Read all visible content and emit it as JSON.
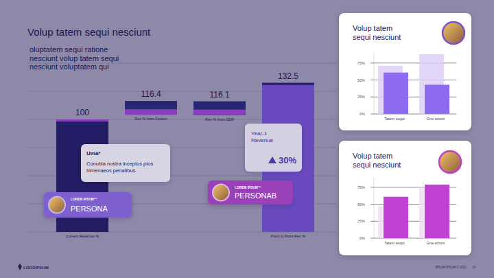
{
  "slide": {
    "title": "Volup tatem sequi nesciunt",
    "subtitle": [
      "oluptatem sequi ratione",
      "nesciunt volup tatem sequi",
      "nesciunt voluptatem qui"
    ],
    "callout": {
      "name": "Uma*",
      "text": "Conubia nostra inceptos ptos himenaeos penatibus."
    },
    "personas": [
      {
        "tag": "LOREM IPSUM™",
        "name": "PERSONA"
      },
      {
        "tag": "LOREM IPSUM™",
        "name": "PERSONAB"
      }
    ],
    "kpi": {
      "label": "Year-1 Revenue",
      "value": "30%"
    },
    "logo": "LOGOIPSUM",
    "footer": "IPSUM IPSUM © 2021",
    "page": 19
  },
  "chart_data": [
    {
      "type": "waterfall",
      "categories": [
        "Current Revenue %",
        "Rev % from Fosterr",
        "Rev % from SDR",
        "Point to Point Rev %"
      ],
      "values": [
        100,
        116.4,
        116.1,
        132.5
      ],
      "colors": [
        "#221d64",
        "#262673",
        "#262673",
        "#6a4bbf"
      ],
      "data_labels": true,
      "ylim": [
        0,
        150
      ],
      "yticks": [
        0,
        25,
        50,
        75,
        100,
        125,
        150
      ],
      "grid": true,
      "tick_labels": false
    },
    {
      "type": "bar",
      "title": "Volup tatem sequi nesciunt",
      "categories": [
        "Tatem sequi",
        "Gne sciunt"
      ],
      "series": [
        {
          "color": "#ddd0f7",
          "values": [
            71,
            88
          ]
        },
        {
          "color": "#8c6bf0",
          "values": [
            61,
            43
          ]
        }
      ],
      "ylim": [
        0,
        90
      ],
      "yticks": [
        {
          "value": 0,
          "label": "0%"
        },
        {
          "value": 25,
          "label": "25%"
        },
        {
          "value": 50,
          "label": "50%"
        },
        {
          "value": 75,
          "label": "75%"
        }
      ],
      "grid": true
    },
    {
      "type": "bar",
      "title": "Volup tatem sequi nesciunt",
      "categories": [
        "Tatem sequi",
        "Gne sciunt"
      ],
      "series": [
        {
          "color": "#f1dcf4",
          "values": [
            47,
            75
          ]
        },
        {
          "color": "#c141d3",
          "values": [
            61,
            79
          ]
        }
      ],
      "ylim": [
        0,
        90
      ],
      "yticks": [
        {
          "value": 0,
          "label": "0%"
        },
        {
          "value": 25,
          "label": "25%"
        },
        {
          "value": 50,
          "label": "50%"
        },
        {
          "value": 75,
          "label": "75%"
        }
      ],
      "grid": true
    }
  ]
}
